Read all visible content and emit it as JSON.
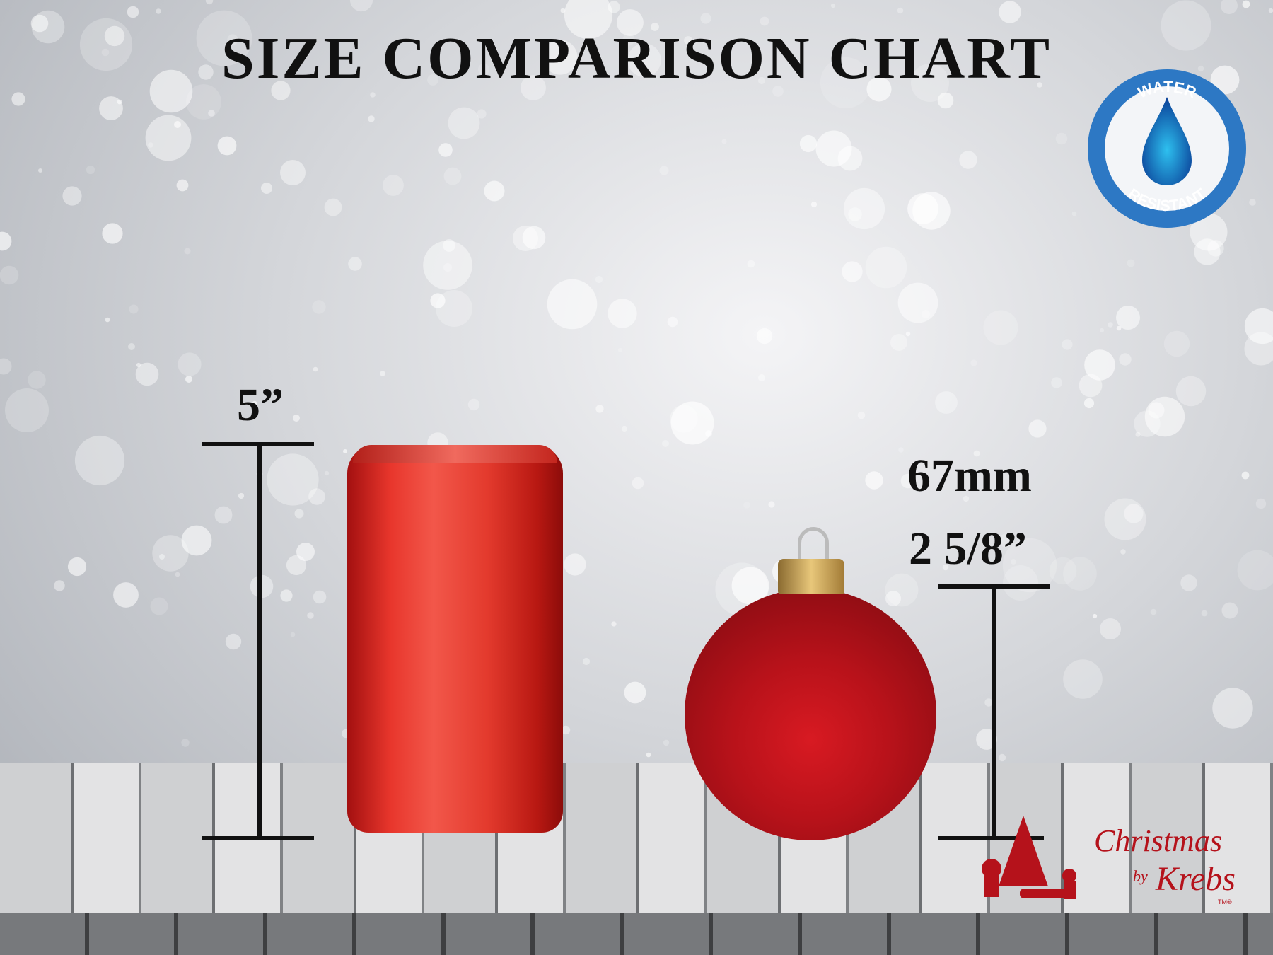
{
  "title": "SIZE COMPARISON CHART",
  "can": {
    "height_label": "5”"
  },
  "ornament": {
    "metric_label": "67mm",
    "imperial_label": "2 5/8”"
  },
  "badge": {
    "top_text": "WATER",
    "bottom_text": "RESISTANT",
    "icon": "water-drop-icon",
    "color": "#2d78c4"
  },
  "logo": {
    "line1": "Christmas",
    "line2": "by",
    "line3": "Krebs",
    "mark": "TM®",
    "color": "#b5121b"
  }
}
